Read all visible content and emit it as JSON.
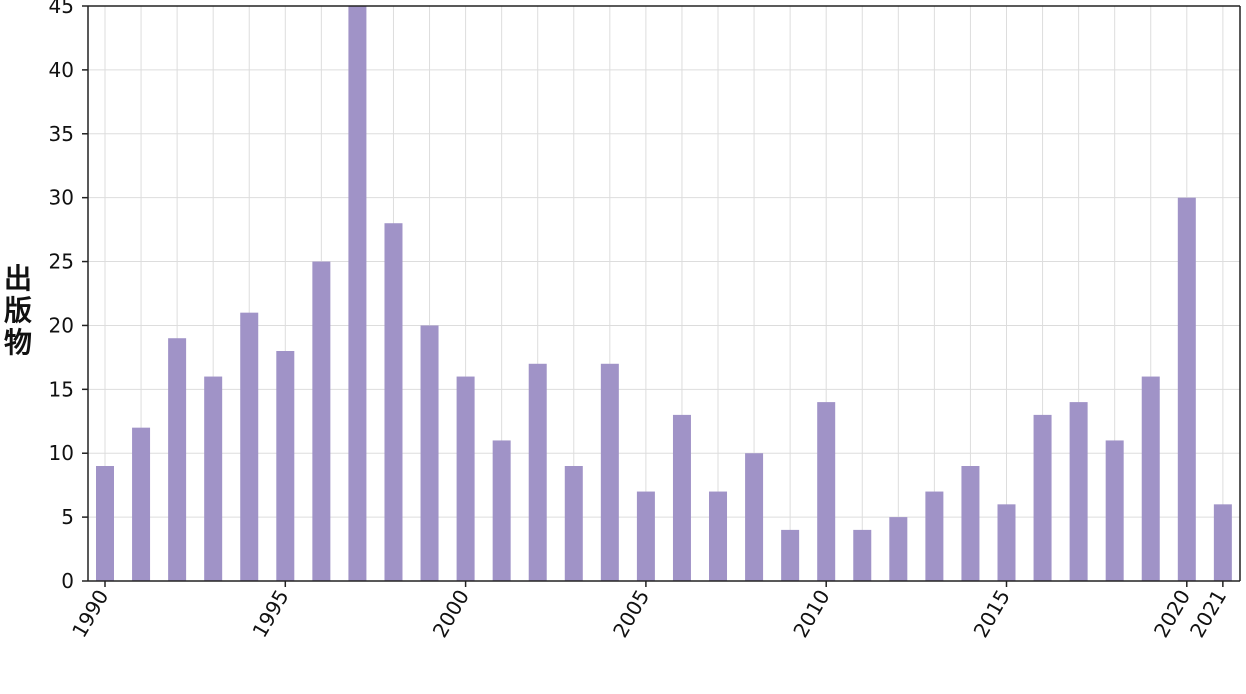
{
  "chart_data": {
    "type": "bar",
    "ylabel": "出版物",
    "xlabel": "",
    "ylim": [
      0,
      45
    ],
    "xlim": [
      1990,
      2021
    ],
    "y_ticks": [
      0,
      5,
      10,
      15,
      20,
      25,
      30,
      35,
      40,
      45
    ],
    "x_ticks": [
      1990,
      1995,
      2000,
      2005,
      2010,
      2015,
      2020,
      2021
    ],
    "grid": true,
    "bar_color": "#a093c7",
    "categories": [
      1990,
      1991,
      1992,
      1993,
      1994,
      1995,
      1996,
      1997,
      1998,
      1999,
      2000,
      2001,
      2002,
      2003,
      2004,
      2005,
      2006,
      2007,
      2008,
      2009,
      2010,
      2011,
      2012,
      2013,
      2014,
      2015,
      2016,
      2017,
      2018,
      2019,
      2020,
      2021
    ],
    "values": [
      9,
      12,
      19,
      16,
      21,
      18,
      25,
      45,
      28,
      20,
      16,
      11,
      17,
      9,
      17,
      7,
      13,
      7,
      10,
      4,
      14,
      4,
      5,
      7,
      9,
      6,
      13,
      14,
      11,
      16,
      30,
      6
    ]
  }
}
